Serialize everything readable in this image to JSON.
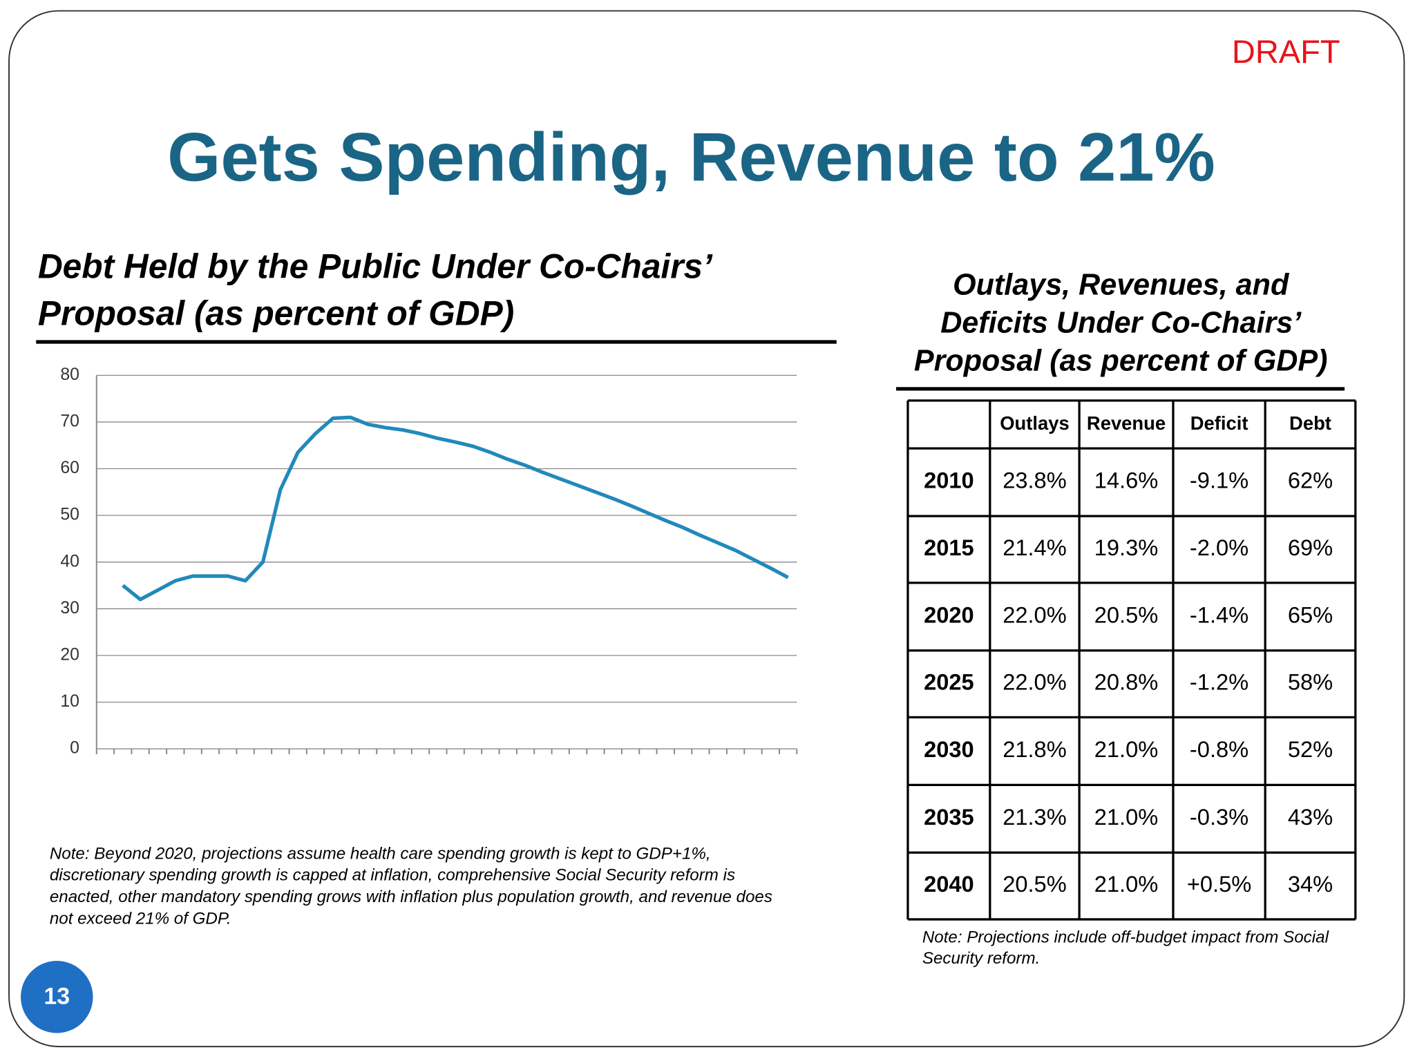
{
  "draft": "DRAFT",
  "title": "Gets Spending, Revenue to 21%",
  "chart_data": {
    "type": "line",
    "title": [
      "Debt Held by the Public Under Co-Chairs’",
      "Proposal (as percent of GDP)"
    ],
    "categories": [
      null,
      null,
      null,
      null,
      null,
      null,
      null,
      null,
      null,
      null,
      null,
      null,
      null,
      null,
      null,
      null,
      null,
      null,
      null,
      null,
      null,
      null,
      null,
      null,
      null,
      null,
      null,
      null,
      null,
      null,
      null,
      null,
      null,
      null,
      null,
      null,
      null,
      null,
      null,
      null
    ],
    "values": [
      null,
      35,
      32,
      34,
      36,
      37,
      37,
      37,
      36,
      40,
      55.5,
      63.5,
      67.5,
      70.8,
      71,
      69.5,
      68.8,
      68.3,
      67.5,
      66.5,
      65.7,
      64.8,
      63.5,
      62,
      60.7,
      59.2,
      57.8,
      56.4,
      55,
      53.6,
      52.1,
      50.5,
      48.9,
      47.4,
      45.7,
      44.1,
      42.5,
      40.6,
      38.7,
      36.7
    ],
    "color": "#2289bb",
    "ylim": [
      0,
      80
    ],
    "yticks": [
      0,
      10,
      20,
      30,
      40,
      50,
      60,
      70,
      80
    ],
    "grid": true,
    "note": [
      "Note: Beyond 2020, projections assume health care spending growth is kept to GDP+1%,",
      "discretionary spending growth is capped at inflation, comprehensive Social Security reform is",
      "enacted, other mandatory spending grows with inflation plus population growth, and revenue does",
      "not exceed 21% of GDP."
    ]
  },
  "table": {
    "title": [
      "Outlays, Revenues, and",
      "Deficits Under Co-Chairs’",
      "Proposal (as percent of GDP)"
    ],
    "columns": [
      "Outlays",
      "Revenue",
      "Deficit",
      "Debt"
    ],
    "rows": [
      [
        "2010",
        "23.8%",
        "14.6%",
        "-9.1%",
        "62%"
      ],
      [
        "2015",
        "21.4%",
        "19.3%",
        "-2.0%",
        "69%"
      ],
      [
        "2020",
        "22.0%",
        "20.5%",
        "-1.4%",
        "65%"
      ],
      [
        "2025",
        "22.0%",
        "20.8%",
        "-1.2%",
        "58%"
      ],
      [
        "2030",
        "21.8%",
        "21.0%",
        "-0.8%",
        "52%"
      ],
      [
        "2035",
        "21.3%",
        "21.0%",
        "-0.3%",
        "43%"
      ],
      [
        "2040",
        "20.5%",
        "21.0%",
        "+0.5%",
        "34%"
      ]
    ],
    "note": [
      "Note: Projections include off-budget impact from Social",
      "Security reform."
    ]
  },
  "page_number": "13"
}
